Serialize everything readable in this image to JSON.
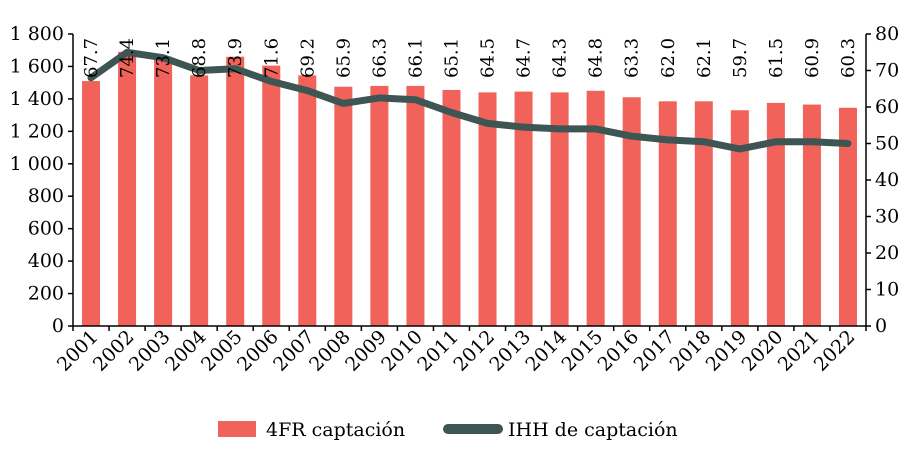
{
  "chart_data": {
    "type": "bar",
    "categories": [
      "2001",
      "2002",
      "2003",
      "2004",
      "2005",
      "2006",
      "2007",
      "2008",
      "2009",
      "2010",
      "2011",
      "2012",
      "2013",
      "2014",
      "2015",
      "2016",
      "2017",
      "2018",
      "2019",
      "2020",
      "2021",
      "2022"
    ],
    "series": [
      {
        "name": "4FR captación",
        "type": "bar",
        "axis": "left",
        "color": "#f0625a",
        "values": [
          1510,
          1690,
          1660,
          1545,
          1660,
          1605,
          1545,
          1475,
          1480,
          1480,
          1455,
          1440,
          1445,
          1440,
          1450,
          1410,
          1385,
          1385,
          1330,
          1375,
          1365,
          1345
        ],
        "labels": [
          "67.7",
          "74.4",
          "73.1",
          "68.8",
          "73.9",
          "71.6",
          "69.2",
          "65.9",
          "66.3",
          "66.1",
          "65.1",
          "64.5",
          "64.7",
          "64.3",
          "64.8",
          "63.3",
          "62.0",
          "62.1",
          "59.7",
          "61.5",
          "60.9",
          "60.3"
        ]
      },
      {
        "name": "IHH de captación",
        "type": "line",
        "axis": "right",
        "color": "#3d5553",
        "values": [
          68,
          75,
          73.5,
          70,
          70.5,
          67,
          64.5,
          61,
          62.5,
          62,
          58.5,
          55.5,
          54.5,
          54,
          54,
          52,
          51,
          50.5,
          48.5,
          50.5,
          50.5,
          50
        ]
      }
    ],
    "left_axis": {
      "min": 0,
      "max": 1800,
      "ticks": [
        "0",
        "200",
        "400",
        "600",
        "800",
        "1 000",
        "1 200",
        "1 400",
        "1 600",
        "1 800"
      ]
    },
    "right_axis": {
      "min": 0,
      "max": 80,
      "ticks": [
        "0",
        "10",
        "20",
        "30",
        "40",
        "50",
        "60",
        "70",
        "80"
      ]
    },
    "grid": false,
    "legend_position": "bottom"
  }
}
